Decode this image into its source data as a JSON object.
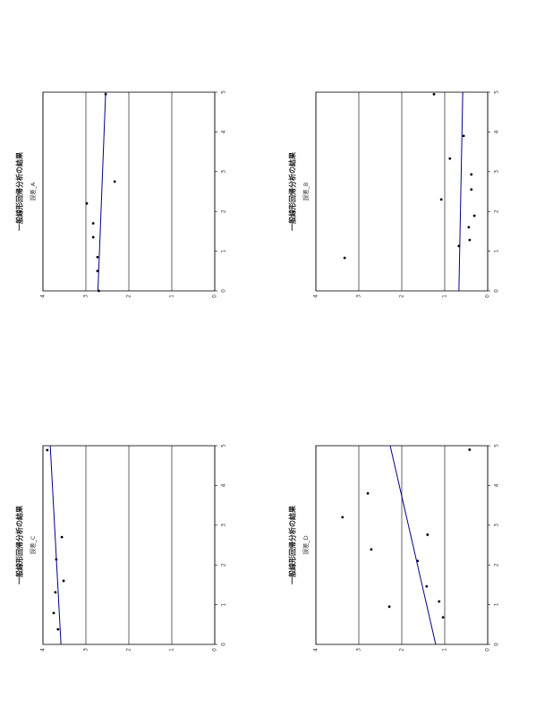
{
  "panels": [
    {
      "title": "一般線形回帰分析の結果",
      "subtitle": "誤差_A",
      "xlim": [
        0,
        5
      ],
      "ylim": [
        0,
        4
      ],
      "xticks": [
        0,
        1,
        2,
        3,
        4,
        5
      ],
      "yticks": [
        0,
        1,
        2,
        3,
        4
      ],
      "x": [
        0,
        0.5,
        0.85,
        1.35,
        1.7,
        2.2,
        2.75,
        4.95
      ],
      "y": [
        2.7,
        2.73,
        2.73,
        2.83,
        2.83,
        2.98,
        2.33,
        2.54
      ],
      "fit": {
        "x": [
          0,
          5
        ],
        "y": [
          2.72,
          2.54
        ]
      },
      "color": "#00008b"
    },
    {
      "title": "一般線形回帰分析の結果",
      "subtitle": "誤差_B",
      "xlim": [
        0,
        5
      ],
      "ylim": [
        0,
        4
      ],
      "xticks": [
        0,
        1,
        2,
        3,
        4,
        5
      ],
      "yticks": [
        0,
        1,
        2,
        3,
        4
      ],
      "x": [
        0.83,
        1.13,
        1.28,
        1.6,
        1.89,
        2.3,
        2.55,
        2.93,
        3.33,
        3.9,
        4.95
      ],
      "y": [
        3.33,
        0.67,
        0.42,
        0.44,
        0.31,
        1.08,
        0.38,
        0.38,
        0.88,
        0.56,
        1.25
      ],
      "fit": {
        "x": [
          0,
          5
        ],
        "y": [
          0.67,
          0.58
        ]
      },
      "color": "#00008b"
    },
    {
      "title": "一般線形回帰分析の結果",
      "subtitle": "誤差_C",
      "xlim": [
        0,
        5
      ],
      "ylim": [
        0,
        4
      ],
      "xticks": [
        0,
        1,
        2,
        3,
        4,
        5
      ],
      "yticks": [
        0,
        1,
        2,
        3,
        4
      ],
      "x": [
        0.38,
        0.79,
        1.31,
        1.6,
        2.14,
        2.7,
        4.89
      ],
      "y": [
        3.65,
        3.75,
        3.71,
        3.52,
        3.69,
        3.56,
        3.9
      ],
      "fit": {
        "x": [
          0,
          5
        ],
        "y": [
          3.58,
          3.83
        ]
      },
      "color": "#00008b"
    },
    {
      "title": "一般線形回帰分析の結果",
      "subtitle": "誤差_D",
      "xlim": [
        0,
        5
      ],
      "ylim": [
        0,
        4
      ],
      "xticks": [
        0,
        1,
        2,
        3,
        4,
        5
      ],
      "yticks": [
        0,
        1,
        2,
        3,
        4
      ],
      "x": [
        0.68,
        0.95,
        1.08,
        1.46,
        2.1,
        2.39,
        2.76,
        3.2,
        3.8,
        4.9
      ],
      "y": [
        1.04,
        2.29,
        1.13,
        1.42,
        1.63,
        2.71,
        1.4,
        3.38,
        2.79,
        0.42
      ],
      "fit": {
        "x": [
          0,
          5
        ],
        "y": [
          1.21,
          2.27
        ]
      },
      "color": "#00008b"
    }
  ]
}
